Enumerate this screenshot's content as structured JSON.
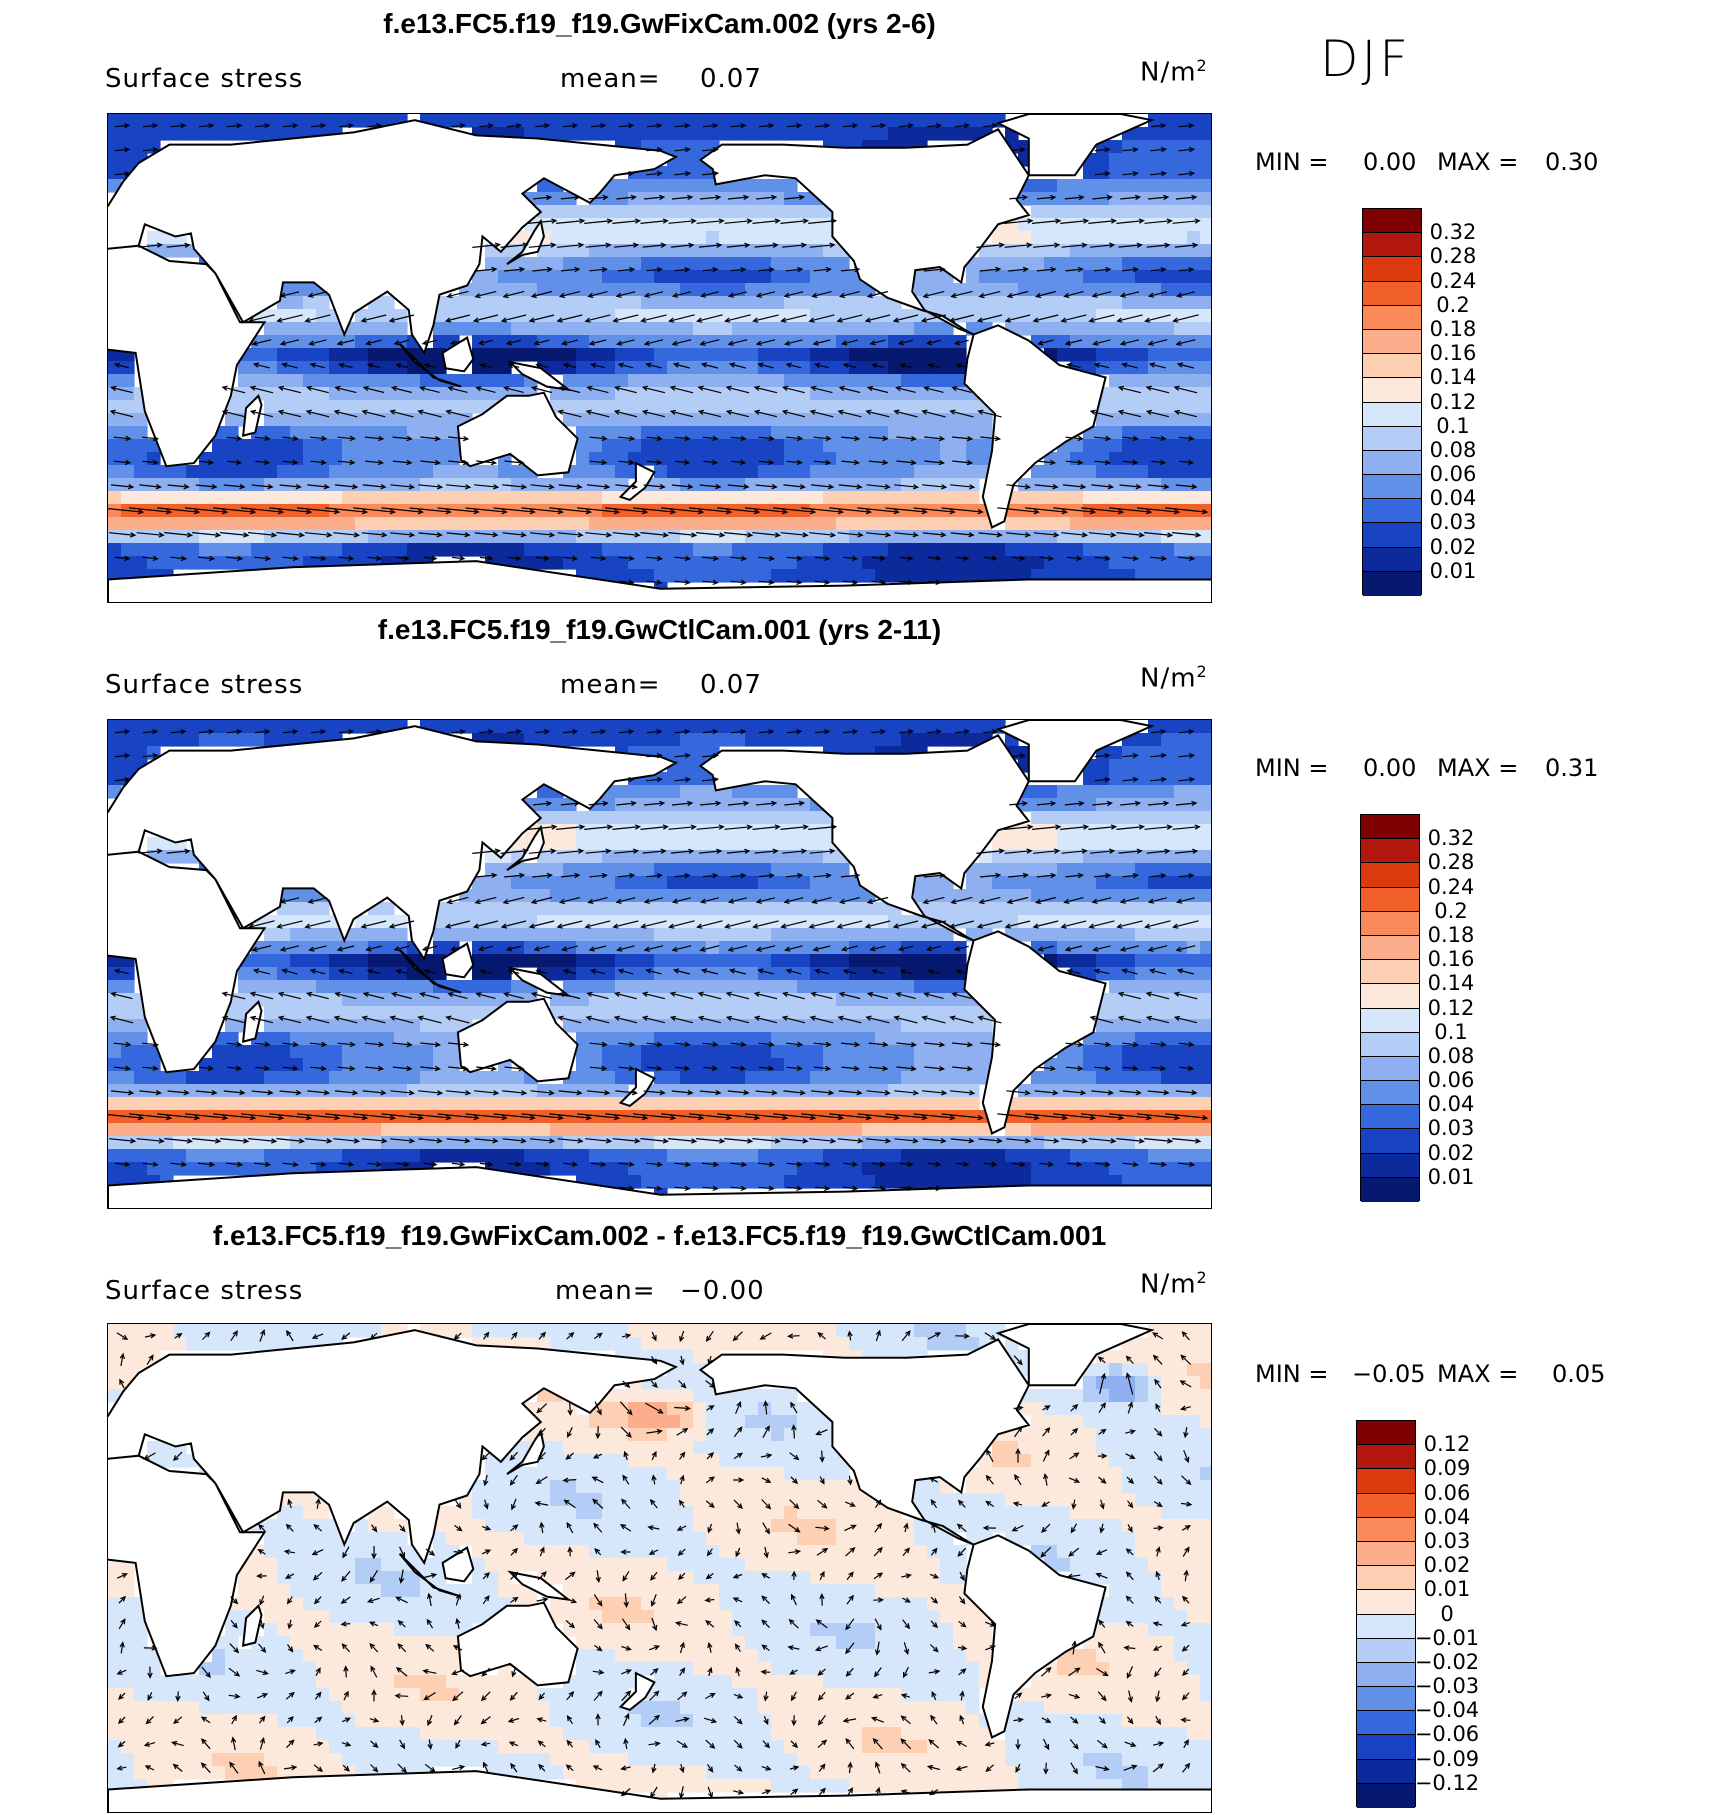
{
  "season": "DJF",
  "panels": [
    {
      "title": "f.e13.FC5.f19_f19.GwFixCam.002 (yrs 2-6)",
      "variable": "Surface stress",
      "mean_label": "mean=",
      "mean_value": "0.07",
      "units": "N/m",
      "units_sup": "2",
      "min_label": "MIN =",
      "min_value": "0.00",
      "max_label": "MAX =",
      "max_value": "0.30",
      "colorbar": {
        "labels": [
          "0.32",
          "0.28",
          "0.24",
          "0.2",
          "0.18",
          "0.16",
          "0.14",
          "0.12",
          "0.1",
          "0.08",
          "0.06",
          "0.04",
          "0.03",
          "0.02",
          "0.01"
        ],
        "colors": [
          "#7f0000",
          "#b2180e",
          "#dc3a0e",
          "#f2602a",
          "#fa8a5a",
          "#fcae8c",
          "#fdd0b4",
          "#fde9dc",
          "#d6e6fb",
          "#b4cdf7",
          "#8fb0f0",
          "#6090e8",
          "#3468dc",
          "#1844c4",
          "#0c2a9c",
          "#061870"
        ]
      },
      "field": "sequential"
    },
    {
      "title": "f.e13.FC5.f19_f19.GwCtlCam.001 (yrs 2-11)",
      "variable": "Surface stress",
      "mean_label": "mean=",
      "mean_value": "0.07",
      "units": "N/m",
      "units_sup": "2",
      "min_label": "MIN =",
      "min_value": "0.00",
      "max_label": "MAX =",
      "max_value": "0.31",
      "colorbar": {
        "labels": [
          "0.32",
          "0.28",
          "0.24",
          "0.2",
          "0.18",
          "0.16",
          "0.14",
          "0.12",
          "0.1",
          "0.08",
          "0.06",
          "0.04",
          "0.03",
          "0.02",
          "0.01"
        ],
        "colors": [
          "#7f0000",
          "#b2180e",
          "#dc3a0e",
          "#f2602a",
          "#fa8a5a",
          "#fcae8c",
          "#fdd0b4",
          "#fde9dc",
          "#d6e6fb",
          "#b4cdf7",
          "#8fb0f0",
          "#6090e8",
          "#3468dc",
          "#1844c4",
          "#0c2a9c",
          "#061870"
        ]
      },
      "field": "sequential"
    },
    {
      "title": "f.e13.FC5.f19_f19.GwFixCam.002 - f.e13.FC5.f19_f19.GwCtlCam.001",
      "variable": "Surface stress",
      "mean_label": "mean=",
      "mean_value": "−0.00",
      "units": "N/m",
      "units_sup": "2",
      "min_label": "MIN =",
      "min_value": "−0.05",
      "max_label": "MAX =",
      "max_value": "0.05",
      "colorbar": {
        "labels": [
          "0.12",
          "0.09",
          "0.06",
          "0.04",
          "0.03",
          "0.02",
          "0.01",
          "0",
          "−0.01",
          "−0.02",
          "−0.03",
          "−0.04",
          "−0.06",
          "−0.09",
          "−0.12"
        ],
        "colors": [
          "#7f0000",
          "#b2180e",
          "#dc3a0e",
          "#f2602a",
          "#fa8a5a",
          "#fcae8c",
          "#fdd0b4",
          "#fde9dc",
          "#d6e6fb",
          "#b4cdf7",
          "#8fb0f0",
          "#6090e8",
          "#3468dc",
          "#1844c4",
          "#0c2a9c",
          "#061870"
        ]
      },
      "field": "diverging"
    }
  ]
}
